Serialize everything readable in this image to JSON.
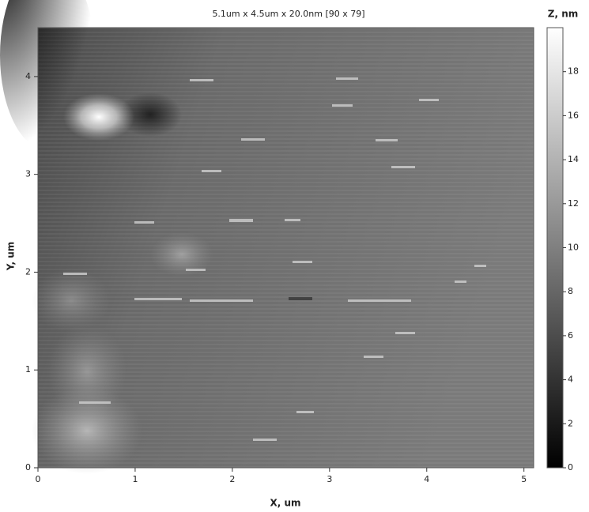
{
  "chart_data": {
    "type": "image",
    "title": "5.1um x 4.5um x 20.0nm [90 x 79]",
    "x_label": "X, um",
    "y_label": "Y, um",
    "colorbar_label": "Z, nm",
    "xlim": [
      0,
      5.1
    ],
    "ylim": [
      0,
      4.5
    ],
    "xticks": [
      0,
      1,
      2,
      3,
      4,
      5
    ],
    "yticks": [
      0,
      1,
      2,
      3,
      4
    ],
    "zlim": [
      0,
      20
    ],
    "zticks": [
      0,
      2,
      4,
      6,
      8,
      10,
      12,
      14,
      16,
      18
    ],
    "colormap": [
      "#000000",
      "#ffffff"
    ]
  }
}
